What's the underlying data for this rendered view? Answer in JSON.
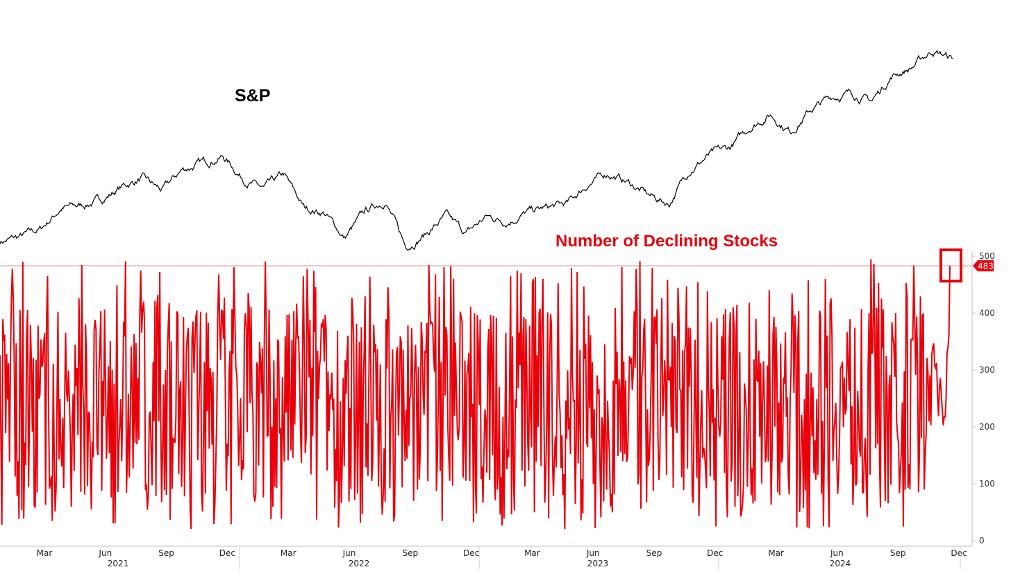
{
  "chart_data": [
    {
      "type": "line",
      "title": "",
      "series": [
        {
          "name": "S&P",
          "color": "#000000",
          "x": [
            "2021-01",
            "2021-02",
            "2021-03",
            "2021-04",
            "2021-05",
            "2021-06",
            "2021-07",
            "2021-08",
            "2021-09",
            "2021-10",
            "2021-11",
            "2021-12",
            "2022-01",
            "2022-02",
            "2022-03",
            "2022-04",
            "2022-05",
            "2022-06",
            "2022-07",
            "2022-08",
            "2022-09",
            "2022-10",
            "2022-11",
            "2022-12",
            "2023-01",
            "2023-02",
            "2023-03",
            "2023-04",
            "2023-05",
            "2023-06",
            "2023-07",
            "2023-08",
            "2023-09",
            "2023-10",
            "2023-11",
            "2023-12",
            "2024-01",
            "2024-02",
            "2024-03",
            "2024-04",
            "2024-05",
            "2024-06",
            "2024-07",
            "2024-08",
            "2024-09",
            "2024-10",
            "2024-11",
            "2024-12"
          ],
          "values": [
            3760,
            3810,
            3900,
            4150,
            4180,
            4250,
            4400,
            4500,
            4350,
            4600,
            4680,
            4760,
            4500,
            4370,
            4530,
            4150,
            4100,
            3800,
            4100,
            4250,
            3700,
            3850,
            4050,
            3850,
            4050,
            4000,
            4100,
            4150,
            4200,
            4430,
            4560,
            4450,
            4300,
            4200,
            4600,
            4770,
            4850,
            5100,
            5250,
            5050,
            5300,
            5450,
            5500,
            5400,
            5700,
            5800,
            6000,
            5900
          ]
        }
      ]
    },
    {
      "type": "line",
      "title": "",
      "series": [
        {
          "name": "Number of Declining Stocks",
          "color": "#e8000a",
          "last_value": 483
        }
      ],
      "yticks": [
        0,
        100,
        200,
        300,
        400,
        500
      ],
      "ylim": [
        0,
        500
      ],
      "x_months": [
        "Mar",
        "Jun",
        "Sep",
        "Dec",
        "Mar",
        "Jun",
        "Sep",
        "Dec",
        "Mar",
        "Jun",
        "Sep",
        "Dec",
        "Mar",
        "Jun",
        "Sep",
        "Dec"
      ],
      "x_years": [
        "2021",
        "2022",
        "2023",
        "2024"
      ],
      "reference_line": 483,
      "highlight_box": true
    }
  ]
}
